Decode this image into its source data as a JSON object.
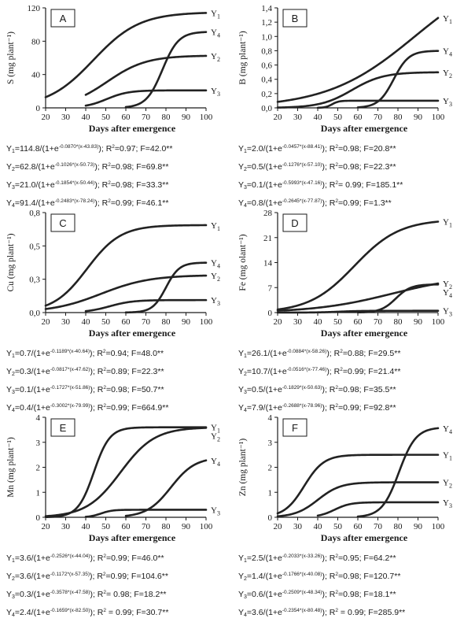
{
  "x_axis_label": "Days after emergence",
  "chart_data": [
    {
      "type": "line",
      "panel": "A",
      "ylabel": "S (mg plant⁻¹)",
      "xlim": [
        20,
        100
      ],
      "ylim": [
        0,
        120
      ],
      "xticks": [
        "20",
        "30",
        "40",
        "50",
        "60",
        "70",
        "80",
        "90",
        "100"
      ],
      "yticks": [
        "0",
        "40",
        "80",
        "120"
      ],
      "series": [
        {
          "name": "Y1",
          "model": {
            "a": 114.8,
            "b": 0.087,
            "c": 43.83
          },
          "x_start": 20
        },
        {
          "name": "Y4",
          "model": {
            "a": 91.4,
            "b": 0.2483,
            "c": 78.24
          },
          "x_start": 60
        },
        {
          "name": "Y2",
          "model": {
            "a": 62.8,
            "b": 0.1026,
            "c": 50.73
          },
          "x_start": 40
        },
        {
          "name": "Y3",
          "model": {
            "a": 21.0,
            "b": 0.1854,
            "c": 50.44
          },
          "x_start": 40
        }
      ],
      "equations": [
        {
          "pre": "Y",
          "sub": "1",
          "mid": "=114.8/(1+e",
          "exp": "-0.0870*(x-43.83)",
          "post": "); R",
          "r2sup": "2",
          "tail": "=0.97; F=42.0**"
        },
        {
          "pre": "Y",
          "sub": "2",
          "mid": "=62.8/(1+e",
          "exp": "-0.1026*(x-50.73)",
          "post": "); R",
          "r2sup": "2",
          "tail": "=0.98; F=69.8**"
        },
        {
          "pre": "Y",
          "sub": "3",
          "mid": "=21.0/(1+e",
          "exp": "-0.1854*(x-50.44)",
          "post": "); R",
          "r2sup": "2",
          "tail": "=0.98; F=33.3**"
        },
        {
          "pre": "Y",
          "sub": "4",
          "mid": "=91.4/(1+e",
          "exp": "-0.2483*(x-78.24)",
          "post": "); R",
          "r2sup": "2",
          "tail": "=0.99; F=46.1**"
        }
      ]
    },
    {
      "type": "line",
      "panel": "B",
      "ylabel": "B (mg plant⁻¹)",
      "xlim": [
        20,
        100
      ],
      "ylim": [
        0,
        1.4
      ],
      "xticks": [
        "20",
        "30",
        "40",
        "50",
        "60",
        "70",
        "80",
        "90",
        "100"
      ],
      "yticks": [
        "0,0",
        "0,2",
        "0,4",
        "0,6",
        "0,8",
        "1,0",
        "1,2",
        "1,4"
      ],
      "series": [
        {
          "name": "Y1",
          "model": {
            "a": 2.0,
            "b": 0.0457,
            "c": 88.41
          },
          "x_start": 20
        },
        {
          "name": "Y4",
          "model": {
            "a": 0.8,
            "b": 0.2645,
            "c": 77.87
          },
          "x_start": 60
        },
        {
          "name": "Y2",
          "model": {
            "a": 0.5,
            "b": 0.1276,
            "c": 57.1
          },
          "x_start": 20
        },
        {
          "name": "Y3",
          "model": {
            "a": 0.1,
            "b": 0.5993,
            "c": 47.16
          },
          "x_start": 40
        }
      ],
      "equations": [
        {
          "pre": "Y",
          "sub": "1",
          "mid": "=2.0/(1+e",
          "exp": "-0.0457*(x-88.41)",
          "post": "); R",
          "r2sup": "2",
          "tail": "=0.98; F=20.8**"
        },
        {
          "pre": "Y",
          "sub": "2",
          "mid": "=0.5/(1+e",
          "exp": "-0.1276*(x-57.10)",
          "post": "); R",
          "r2sup": "2",
          "tail": "=0.98; F=22.3**"
        },
        {
          "pre": "Y",
          "sub": "3",
          "mid": "=0.1/(1+e",
          "exp": "-0.5993*(x-47.16)",
          "post": "); R",
          "r2sup": "2",
          "tail": "= 0.99; F=185.1**"
        },
        {
          "pre": "Y",
          "sub": "4",
          "mid": "=0.8/(1+e",
          "exp": "-0.2645*(x-77.87)",
          "post": "); R",
          "r2sup": "2",
          "tail": "=0.99; F=1.3**"
        }
      ]
    },
    {
      "type": "line",
      "panel": "C",
      "ylabel": "Cu (mg plant⁻¹)",
      "xlim": [
        20,
        100
      ],
      "ylim": [
        0,
        0.8
      ],
      "xticks": [
        "20",
        "30",
        "40",
        "50",
        "60",
        "70",
        "80",
        "90",
        "100"
      ],
      "yticks": [
        "0,0",
        "0,3",
        "0,5",
        "0,8"
      ],
      "series": [
        {
          "name": "Y1",
          "model": {
            "a": 0.7,
            "b": 0.1189,
            "c": 40.64
          },
          "x_start": 20
        },
        {
          "name": "Y4",
          "model": {
            "a": 0.4,
            "b": 0.3002,
            "c": 79.99
          },
          "x_start": 60
        },
        {
          "name": "Y2",
          "model": {
            "a": 0.3,
            "b": 0.0817,
            "c": 47.62
          },
          "x_start": 20
        },
        {
          "name": "Y3",
          "model": {
            "a": 0.1,
            "b": 0.1727,
            "c": 51.86
          },
          "x_start": 40
        }
      ],
      "equations": [
        {
          "pre": "Y",
          "sub": "1",
          "mid": "=0.7/(1+e",
          "exp": "-0.1189*(x-40.64)",
          "post": "); R",
          "r2sup": "2",
          "tail": "=0.94; F=48.0**"
        },
        {
          "pre": "Y",
          "sub": "2",
          "mid": "=0.3/(1+e",
          "exp": "-0.0817*(x-47.62)",
          "post": "); R",
          "r2sup": "2",
          "tail": "=0.89; F=22.3**"
        },
        {
          "pre": "Y",
          "sub": "3",
          "mid": "=0.1/(1+e",
          "exp": "-0.1727*(x-51.86)",
          "post": "); R",
          "r2sup": "2",
          "tail": "=0.98; F=50.7**"
        },
        {
          "pre": "Y",
          "sub": "4",
          "mid": "=0.4/(1+e",
          "exp": "-0.3002*(x-79.99)",
          "post": "); R",
          "r2sup": "2",
          "tail": "=0.99; F=664.9**"
        }
      ]
    },
    {
      "type": "line",
      "panel": "D",
      "ylabel": "Fe (mg olant⁻¹)",
      "xlim": [
        20,
        100
      ],
      "ylim": [
        0,
        28
      ],
      "xticks": [
        "20",
        "30",
        "40",
        "50",
        "60",
        "70",
        "80",
        "90",
        "100"
      ],
      "yticks": [
        "0",
        "7",
        "14",
        "21",
        "28"
      ],
      "series": [
        {
          "name": "Y1",
          "model": {
            "a": 26.1,
            "b": 0.0884,
            "c": 58.26
          },
          "x_start": 20
        },
        {
          "name": "Y2",
          "model": {
            "a": 10.7,
            "b": 0.0516,
            "c": 77.46
          },
          "x_start": 20
        },
        {
          "name": "Y4",
          "model": {
            "a": 7.9,
            "b": 0.2688,
            "c": 78.96
          },
          "x_start": 60
        },
        {
          "name": "Y3",
          "model": {
            "a": 0.5,
            "b": 0.1829,
            "c": 50.63
          },
          "x_start": 20
        }
      ],
      "equations": [
        {
          "pre": "Y",
          "sub": "1",
          "mid": "=26.1/(1+e",
          "exp": "-0.0884*(x-58.26)",
          "post": "); R",
          "r2sup": "2",
          "tail": "=0.88; F=29.5**"
        },
        {
          "pre": "Y",
          "sub": "2",
          "mid": "=10.7/(1+e",
          "exp": "-0.0516*(x-77.46)",
          "post": "); R",
          "r2sup": "2",
          "tail": "=0.99; F=21.4**"
        },
        {
          "pre": "Y",
          "sub": "3",
          "mid": "=0.5/(1+e",
          "exp": "-0.1829*(x-50.63)",
          "post": "); R",
          "r2sup": "2",
          "tail": "=0.98; F=35.5**"
        },
        {
          "pre": "Y",
          "sub": "4",
          "mid": "=7.9/(1+e",
          "exp": "-0.2688*(x-78.96)",
          "post": "); R",
          "r2sup": "2",
          "tail": "=0.99; F=92.8**"
        }
      ]
    },
    {
      "type": "line",
      "panel": "E",
      "ylabel": "Mn (mg plant⁻¹)",
      "xlim": [
        20,
        100
      ],
      "ylim": [
        0,
        4
      ],
      "xticks": [
        "20",
        "30",
        "40",
        "50",
        "60",
        "70",
        "80",
        "90",
        "100"
      ],
      "yticks": [
        "0",
        "1",
        "2",
        "3",
        "4"
      ],
      "series": [
        {
          "name": "Y1",
          "model": {
            "a": 3.6,
            "b": 0.2526,
            "c": 44.04
          },
          "x_start": 20
        },
        {
          "name": "Y2",
          "model": {
            "a": 3.6,
            "b": 0.1172,
            "c": 57.35
          },
          "x_start": 20
        },
        {
          "name": "Y4",
          "model": {
            "a": 2.4,
            "b": 0.1659,
            "c": 82.5
          },
          "x_start": 60
        },
        {
          "name": "Y3",
          "model": {
            "a": 0.3,
            "b": 0.3578,
            "c": 47.58
          },
          "x_start": 40
        }
      ],
      "equations": [
        {
          "pre": "Y",
          "sub": "1",
          "mid": "=3.6/(1+e",
          "exp": "-0.2526*(x-44.04)",
          "post": "); R",
          "r2sup": "2",
          "tail": "=0.99; F=46.0**"
        },
        {
          "pre": "Y",
          "sub": "2",
          "mid": "=3.6/(1+e",
          "exp": "-0.1172*(x-57.35)",
          "post": "); R",
          "r2sup": "2",
          "tail": "=0.99; F=104.6**"
        },
        {
          "pre": "Y",
          "sub": "3",
          "mid": "=0.3/(1+e",
          "exp": "-0.3578*(x-47.58)",
          "post": "); R",
          "r2sup": "2",
          "tail": "= 0.98; F=18.2**"
        },
        {
          "pre": "Y",
          "sub": "4",
          "mid": "=2.4/(1+e",
          "exp": "-0.1659*(x-82.50)",
          "post": "); R",
          "r2sup": "2",
          "tail": " = 0.99; F=30.7**"
        }
      ]
    },
    {
      "type": "line",
      "panel": "F",
      "ylabel": "Zn (mg plant⁻¹)",
      "xlim": [
        20,
        100
      ],
      "ylim": [
        0,
        4
      ],
      "xticks": [
        "20",
        "30",
        "40",
        "50",
        "60",
        "70",
        "80",
        "90",
        "100"
      ],
      "yticks": [
        "0",
        "1",
        "2",
        "3",
        "4"
      ],
      "series": [
        {
          "name": "Y4",
          "model": {
            "a": 3.6,
            "b": 0.2354,
            "c": 80.48
          },
          "x_start": 60
        },
        {
          "name": "Y1",
          "model": {
            "a": 2.5,
            "b": 0.2033,
            "c": 33.26
          },
          "x_start": 20
        },
        {
          "name": "Y2",
          "model": {
            "a": 1.4,
            "b": 0.1766,
            "c": 40.08
          },
          "x_start": 20
        },
        {
          "name": "Y3",
          "model": {
            "a": 0.6,
            "b": 0.2509,
            "c": 48.34
          },
          "x_start": 40
        }
      ],
      "equations": [
        {
          "pre": "Y",
          "sub": "1",
          "mid": "=2.5/(1+e",
          "exp": "-0.2033*(x-33.26)",
          "post": "); R",
          "r2sup": "2",
          "tail": "=0.95; F=64.2**"
        },
        {
          "pre": "Y",
          "sub": "2",
          "mid": "=1.4/(1+e",
          "exp": "-0.1766*(x-40.08)",
          "post": "); R",
          "r2sup": "2",
          "tail": "=0.98; F=120.7**"
        },
        {
          "pre": "Y",
          "sub": "3",
          "mid": "=0.6/(1+e",
          "exp": "-0.2509*(x-48.34)",
          "post": "); R",
          "r2sup": "2",
          "tail": "=0.98; F=18.1**"
        },
        {
          "pre": "Y",
          "sub": "4",
          "mid": "=3.6/(1+e",
          "exp": "-0.2354*(x-80.48)",
          "post": "); R",
          "r2sup": "2",
          "tail": " = 0.99; F=285.9**"
        }
      ]
    }
  ]
}
